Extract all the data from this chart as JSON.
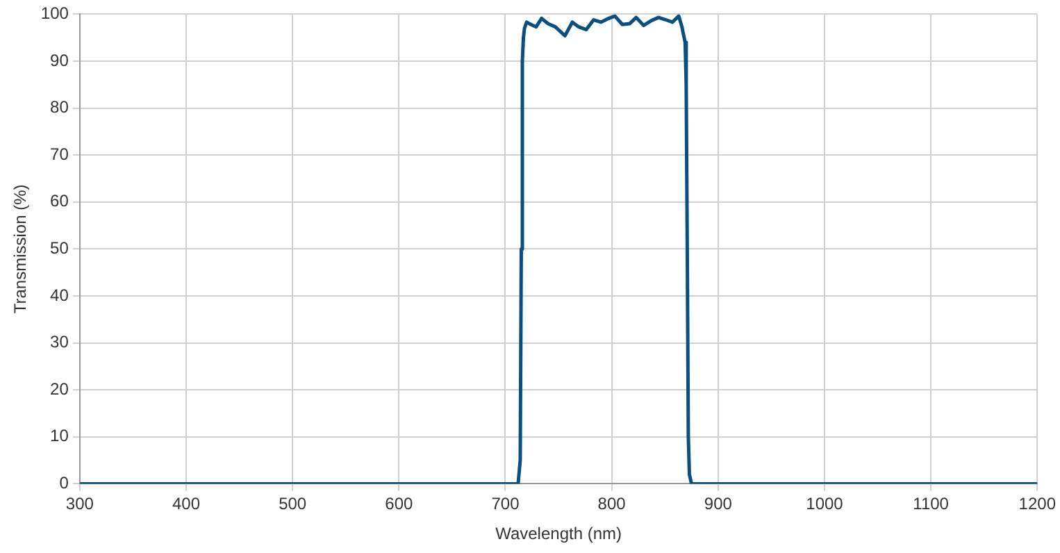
{
  "chart_data": {
    "type": "line",
    "xlabel": "Wavelength (nm)",
    "ylabel": "Transmission (%)",
    "x": [
      300,
      700,
      712,
      714,
      715,
      716,
      717,
      718,
      720,
      724,
      729,
      734,
      740,
      747,
      756,
      763,
      769,
      776,
      783,
      790,
      796,
      803,
      810,
      817,
      823,
      830,
      837,
      844,
      851,
      857,
      863,
      866,
      869,
      870,
      871,
      872,
      873,
      875,
      1000,
      1200
    ],
    "series": [
      {
        "color": "#0b4f80",
        "values": [
          0,
          0,
          0,
          5,
          50,
          90,
          95,
          97,
          98.3,
          97.8,
          97.3,
          99.1,
          98,
          97.3,
          95.4,
          98.3,
          97.3,
          96.7,
          98.8,
          98.3,
          99,
          99.6,
          97.8,
          98,
          99.3,
          97.6,
          98.6,
          99.3,
          98.8,
          98.3,
          99.6,
          97.3,
          94,
          85,
          50,
          10,
          2,
          0,
          0,
          0
        ]
      }
    ],
    "xlim": [
      300,
      1200
    ],
    "xticks": [
      300,
      400,
      500,
      600,
      700,
      800,
      900,
      1000,
      1100,
      1200
    ],
    "ylim": [
      0,
      100
    ],
    "yticks": [
      0,
      10,
      20,
      30,
      40,
      50,
      60,
      70,
      80,
      90,
      100
    ],
    "grid": true,
    "legend": false,
    "marker": "none",
    "line_style": "solid"
  }
}
